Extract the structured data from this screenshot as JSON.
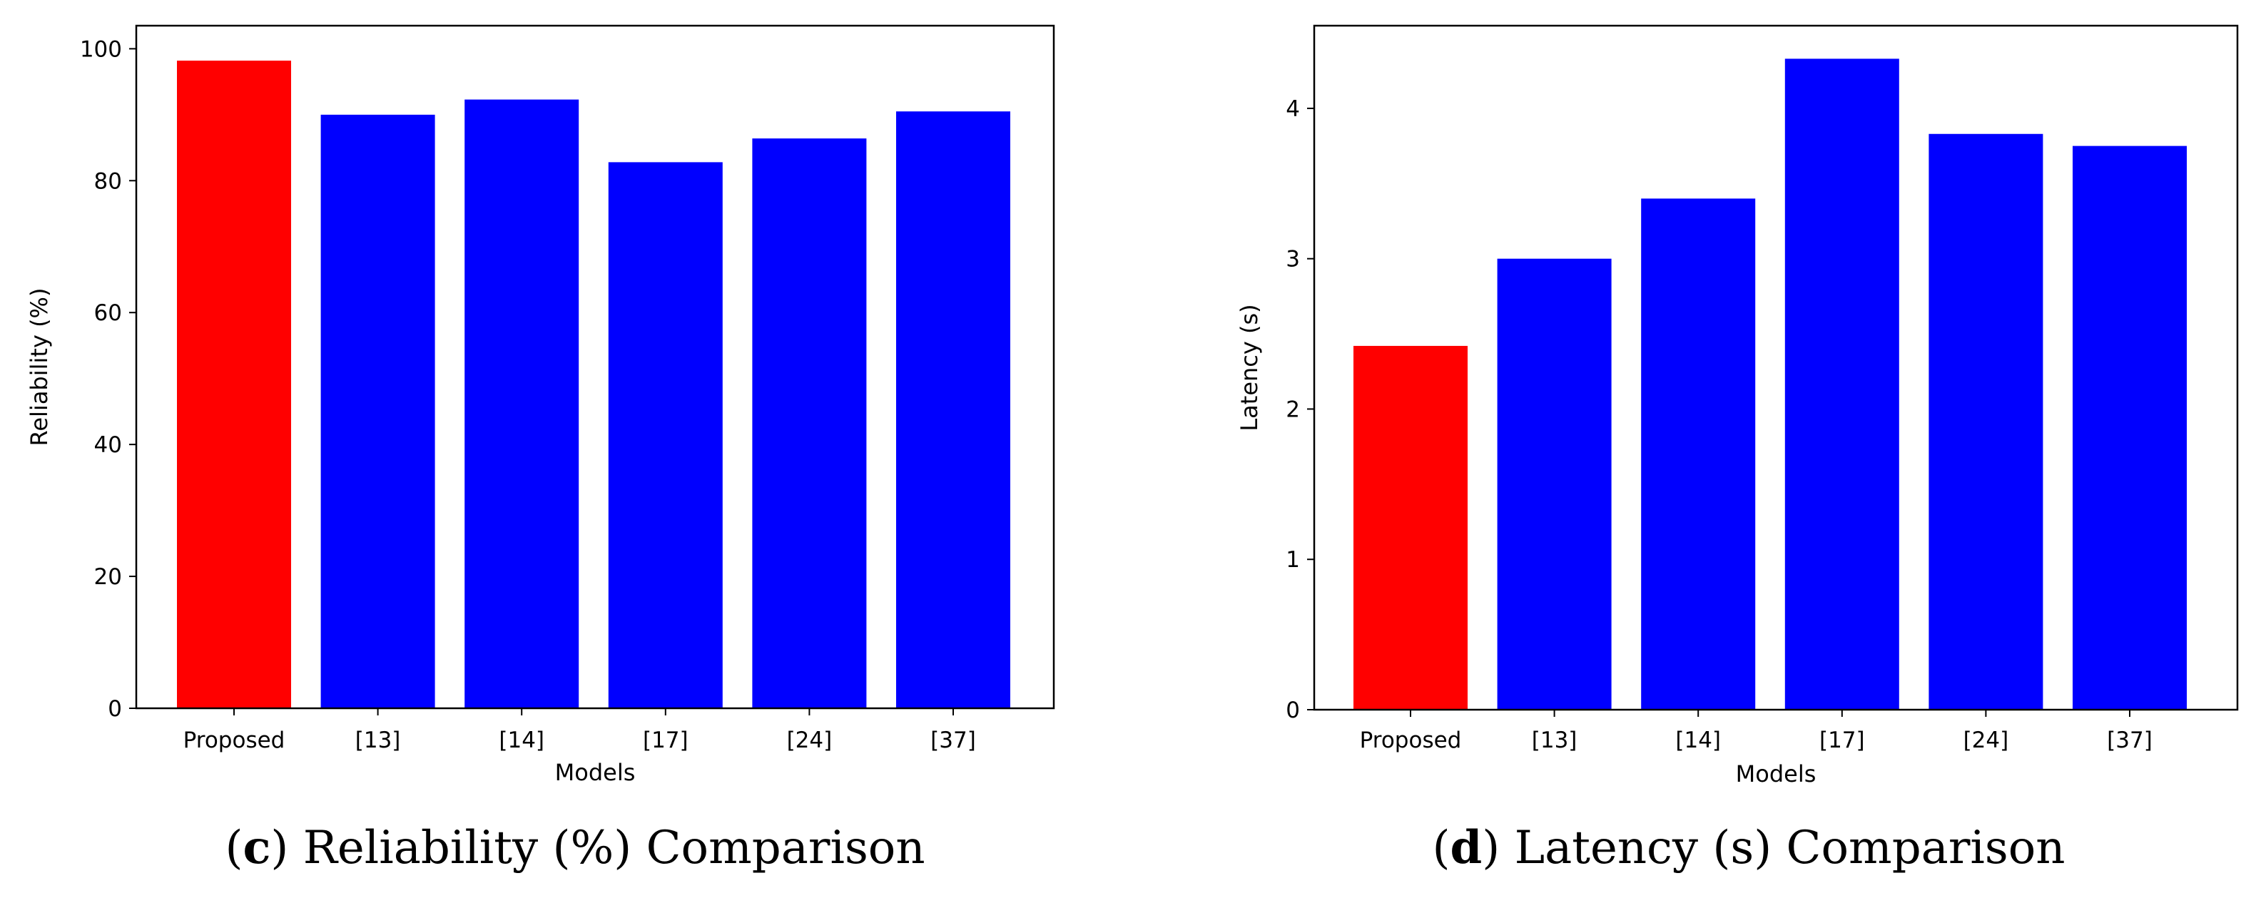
{
  "chart_data": [
    {
      "type": "bar",
      "title": "",
      "xlabel": "Models",
      "ylabel": "Reliability  (%)",
      "categories": [
        "Proposed",
        "[13]",
        "[14]",
        "[17]",
        "[24]",
        "[37]"
      ],
      "values": [
        98.2,
        90.0,
        92.3,
        82.8,
        86.4,
        90.5
      ],
      "colors": [
        "#ff0000",
        "#0000ff",
        "#0000ff",
        "#0000ff",
        "#0000ff",
        "#0000ff"
      ],
      "ylim": [
        0,
        103.5
      ],
      "yticks": [
        0,
        20,
        40,
        60,
        80,
        100
      ],
      "grid": false,
      "caption": {
        "letter": "c",
        "text": ") Reliability (%) Comparison",
        "open": "("
      }
    },
    {
      "type": "bar",
      "title": "",
      "xlabel": "Models",
      "ylabel": "Latency (s)",
      "categories": [
        "Proposed",
        "[13]",
        "[14]",
        "[17]",
        "[24]",
        "[37]"
      ],
      "values": [
        2.42,
        3.0,
        3.4,
        4.33,
        3.83,
        3.75
      ],
      "colors": [
        "#ff0000",
        "#0000ff",
        "#0000ff",
        "#0000ff",
        "#0000ff",
        "#0000ff"
      ],
      "ylim": [
        0,
        4.55
      ],
      "yticks": [
        0,
        1,
        2,
        3,
        4
      ],
      "grid": false,
      "caption": {
        "letter": "d",
        "text": ") Latency (s) Comparison",
        "open": "("
      }
    }
  ]
}
